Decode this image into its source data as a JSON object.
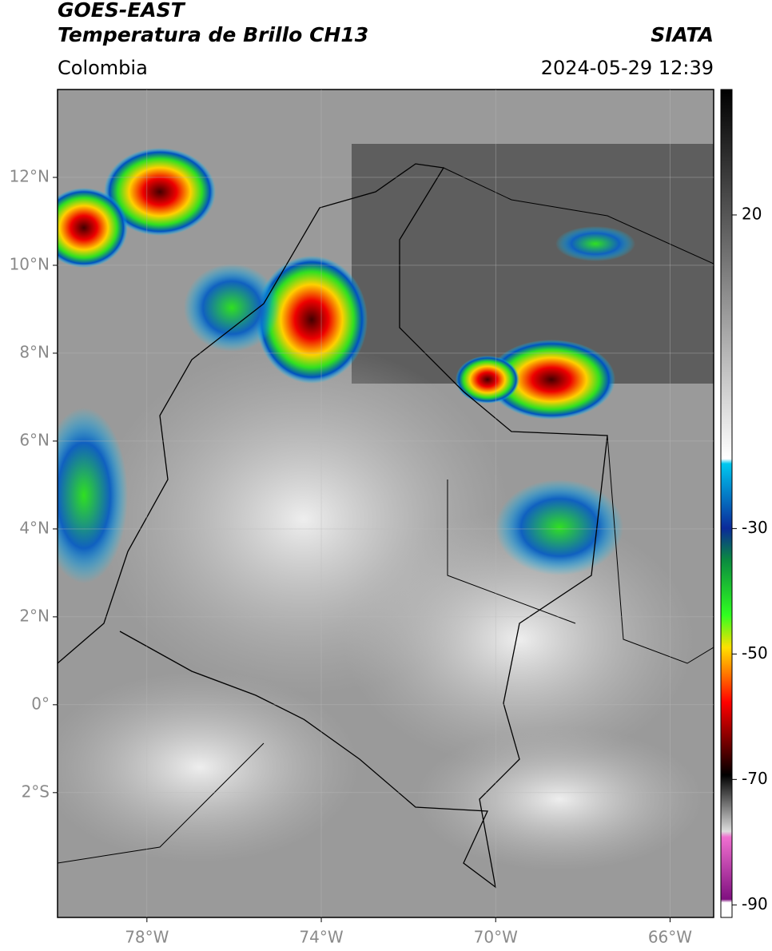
{
  "header": {
    "title": "GOES-EAST",
    "subtitle": "Temperatura de Brillo CH13",
    "region": "Colombia",
    "source": "SIATA",
    "timestamp": "2024-05-29 12:39"
  },
  "map": {
    "lat_lim": [
      -4.84,
      14
    ],
    "lon_lim": [
      -80.05,
      -65
    ],
    "lat_ticks": [
      {
        "value": 12,
        "label": "12°N"
      },
      {
        "value": 10,
        "label": "10°N"
      },
      {
        "value": 8,
        "label": "8°N"
      },
      {
        "value": 6,
        "label": "6°N"
      },
      {
        "value": 4,
        "label": "4°N"
      },
      {
        "value": 2,
        "label": "2°N"
      },
      {
        "value": 0,
        "label": "0°"
      },
      {
        "value": -2,
        "label": "2°S"
      }
    ],
    "lon_ticks": [
      {
        "value": -78,
        "label": "78°W"
      },
      {
        "value": -74,
        "label": "74°W"
      },
      {
        "value": -70,
        "label": "70°W"
      },
      {
        "value": -66,
        "label": "66°W"
      }
    ]
  },
  "colorbar": {
    "lim": [
      -92,
      40
    ],
    "ticks": [
      20,
      -30,
      -50,
      -70,
      -90
    ]
  }
}
